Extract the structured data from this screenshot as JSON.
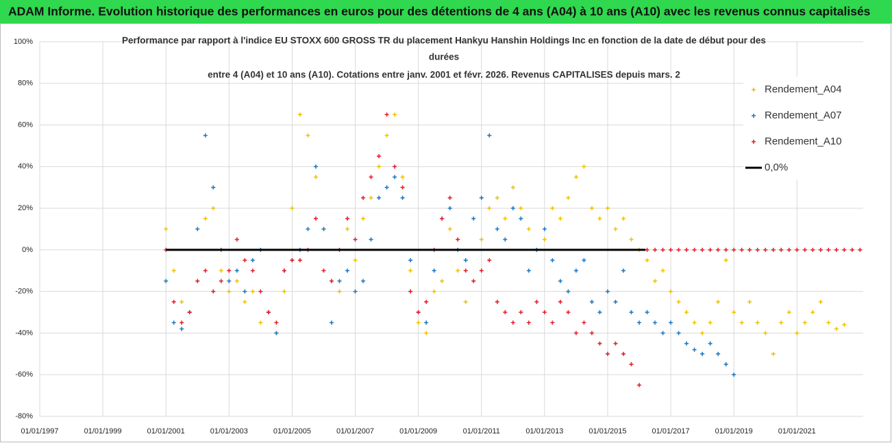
{
  "header": "ADAM Informe. Evolution historique des performances en euros pour des détentions de 4 ans (A04) à 10 ans (A10) avec les revenus connus capitalisés",
  "chart_data": {
    "type": "scatter",
    "title": [
      "Performance par rapport à l'indice EU STOXX 600 GROSS TR  du placement Hankyu Hanshin Holdings Inc en fonction de la date de début pour des",
      "durées",
      "entre 4 (A04) et 10 ans (A10).  Cotations entre janv. 2001 et févr. 2026. Revenus CAPITALISES depuis mars. 2"
    ],
    "xlim": [
      1997,
      2023.1
    ],
    "xticks": [
      {
        "value": 1997,
        "label": "01/01/1997"
      },
      {
        "value": 1999,
        "label": "01/01/1999"
      },
      {
        "value": 2001,
        "label": "01/01/2001"
      },
      {
        "value": 2003,
        "label": "01/01/2003"
      },
      {
        "value": 2005,
        "label": "01/01/2005"
      },
      {
        "value": 2007,
        "label": "01/01/2007"
      },
      {
        "value": 2009,
        "label": "01/01/2009"
      },
      {
        "value": 2011,
        "label": "01/01/2011"
      },
      {
        "value": 2013,
        "label": "01/01/2013"
      },
      {
        "value": 2015,
        "label": "01/01/2015"
      },
      {
        "value": 2017,
        "label": "01/01/2017"
      },
      {
        "value": 2019,
        "label": "01/01/2019"
      },
      {
        "value": 2021,
        "label": "01/01/2021"
      }
    ],
    "ylim": [
      -80,
      100
    ],
    "yticks": [
      {
        "value": -80,
        "label": "-80%"
      },
      {
        "value": -60,
        "label": "-60%"
      },
      {
        "value": -40,
        "label": "-40%"
      },
      {
        "value": -20,
        "label": "-20%"
      },
      {
        "value": 0,
        "label": "0%"
      },
      {
        "value": 20,
        "label": "20%"
      },
      {
        "value": 40,
        "label": "40%"
      },
      {
        "value": 60,
        "label": "60%"
      },
      {
        "value": 80,
        "label": "80%"
      },
      {
        "value": 100,
        "label": "100%"
      }
    ],
    "grid": true,
    "legend": "right",
    "series": [
      {
        "name": "Rendement_A04",
        "color": "#f2c200",
        "mode": "markers",
        "x": [
          2001,
          2001.25,
          2001.5,
          2001.75,
          2002,
          2002.25,
          2002.5,
          2002.75,
          2003,
          2003.25,
          2003.5,
          2003.75,
          2004,
          2004.25,
          2004.5,
          2004.75,
          2005,
          2005.25,
          2005.5,
          2005.75,
          2006,
          2006.25,
          2006.5,
          2006.75,
          2007,
          2007.25,
          2007.5,
          2007.75,
          2008,
          2008.25,
          2008.5,
          2008.75,
          2009,
          2009.25,
          2009.5,
          2009.75,
          2010,
          2010.25,
          2010.5,
          2010.75,
          2011,
          2011.25,
          2011.5,
          2011.75,
          2012,
          2012.25,
          2012.5,
          2012.75,
          2013,
          2013.25,
          2013.5,
          2013.75,
          2014,
          2014.25,
          2014.5,
          2014.75,
          2015,
          2015.25,
          2015.5,
          2015.75,
          2016,
          2016.25,
          2016.5,
          2016.75,
          2017,
          2017.25,
          2017.5,
          2017.75,
          2018,
          2018.25,
          2018.5,
          2018.75,
          2019,
          2019.25,
          2019.5,
          2019.75,
          2020,
          2020.25,
          2020.5,
          2020.75,
          2021,
          2021.25,
          2021.5,
          2021.75,
          2022,
          2022.25,
          2022.5
        ],
        "values": [
          10,
          -10,
          -25,
          -30,
          -15,
          15,
          20,
          -10,
          -20,
          -15,
          -25,
          -20,
          -35,
          -30,
          -40,
          -20,
          20,
          65,
          55,
          35,
          10,
          -15,
          -20,
          10,
          -5,
          15,
          25,
          40,
          55,
          65,
          35,
          -10,
          -35,
          -40,
          -20,
          -15,
          10,
          -10,
          -25,
          -15,
          5,
          20,
          25,
          15,
          30,
          20,
          10,
          0,
          5,
          20,
          15,
          25,
          35,
          40,
          20,
          15,
          20,
          10,
          15,
          5,
          0,
          -5,
          -15,
          -10,
          -20,
          -25,
          -30,
          -35,
          -40,
          -35,
          -25,
          -5,
          -30,
          -35,
          -25,
          -35,
          -40,
          -50,
          -35,
          -30,
          -40,
          -35,
          -30,
          -25,
          -35,
          -38,
          -36
        ]
      },
      {
        "name": "Rendement_A07",
        "color": "#1f7ac4",
        "mode": "markers",
        "x": [
          2001,
          2001.25,
          2001.5,
          2001.75,
          2002,
          2002.25,
          2002.5,
          2002.75,
          2003,
          2003.25,
          2003.5,
          2003.75,
          2004,
          2004.25,
          2004.5,
          2004.75,
          2005,
          2005.25,
          2005.5,
          2005.75,
          2006,
          2006.25,
          2006.5,
          2006.75,
          2007,
          2007.25,
          2007.5,
          2007.75,
          2008,
          2008.25,
          2008.5,
          2008.75,
          2009,
          2009.25,
          2009.5,
          2009.75,
          2010,
          2010.25,
          2010.5,
          2010.75,
          2011,
          2011.25,
          2011.5,
          2011.75,
          2012,
          2012.25,
          2012.5,
          2012.75,
          2013,
          2013.25,
          2013.5,
          2013.75,
          2014,
          2014.25,
          2014.5,
          2014.75,
          2015,
          2015.25,
          2015.5,
          2015.75,
          2016,
          2016.25,
          2016.5,
          2016.75,
          2017,
          2017.25,
          2017.5,
          2017.75,
          2018,
          2018.25,
          2018.5,
          2018.75,
          2019
        ],
        "values": [
          -15,
          -35,
          -38,
          -30,
          10,
          55,
          30,
          0,
          -15,
          -10,
          -20,
          -5,
          0,
          -30,
          -40,
          -10,
          -5,
          0,
          10,
          40,
          10,
          -35,
          -15,
          -10,
          -20,
          -15,
          5,
          25,
          30,
          35,
          25,
          -5,
          -30,
          -35,
          -10,
          15,
          20,
          0,
          -5,
          15,
          25,
          55,
          10,
          5,
          20,
          15,
          -10,
          0,
          10,
          -5,
          -15,
          -20,
          -10,
          -5,
          -25,
          -30,
          -20,
          -25,
          -10,
          -30,
          -35,
          -30,
          -35,
          -40,
          -35,
          -40,
          -45,
          -48,
          -50,
          -45,
          -50,
          -55,
          -60
        ]
      },
      {
        "name": "Rendement_A10",
        "color": "#e8202a",
        "mode": "markers",
        "x": [
          2001,
          2001.25,
          2001.5,
          2001.75,
          2002,
          2002.25,
          2002.5,
          2002.75,
          2003,
          2003.25,
          2003.5,
          2003.75,
          2004,
          2004.25,
          2004.5,
          2004.75,
          2005,
          2005.25,
          2005.5,
          2005.75,
          2006,
          2006.25,
          2006.5,
          2006.75,
          2007,
          2007.25,
          2007.5,
          2007.75,
          2008,
          2008.25,
          2008.5,
          2008.75,
          2009,
          2009.25,
          2009.5,
          2009.75,
          2010,
          2010.25,
          2010.5,
          2010.75,
          2011,
          2011.25,
          2011.5,
          2011.75,
          2012,
          2012.25,
          2012.5,
          2012.75,
          2013,
          2013.25,
          2013.5,
          2013.75,
          2014,
          2014.25,
          2014.5,
          2014.75,
          2015,
          2015.25,
          2015.5,
          2015.75,
          2016,
          2016.25,
          2016.5,
          2016.75,
          2017,
          2017.25,
          2017.5,
          2017.75,
          2018,
          2018.25,
          2018.5,
          2018.75,
          2019,
          2019.25,
          2019.5,
          2019.75,
          2020,
          2020.25,
          2020.5,
          2020.75,
          2021,
          2021.25,
          2021.5,
          2021.75,
          2022,
          2022.25,
          2022.5,
          2022.75,
          2023
        ],
        "values": [
          0,
          -25,
          -35,
          -30,
          -15,
          -10,
          -20,
          -15,
          -10,
          5,
          -5,
          -10,
          -20,
          -30,
          -35,
          -10,
          -5,
          -5,
          0,
          15,
          -10,
          -15,
          0,
          15,
          5,
          25,
          35,
          45,
          65,
          40,
          30,
          -20,
          -30,
          -25,
          0,
          15,
          25,
          5,
          -10,
          -15,
          -10,
          -5,
          -25,
          -30,
          -35,
          -30,
          -35,
          -25,
          -30,
          -35,
          -25,
          -30,
          -40,
          -35,
          -40,
          -45,
          -50,
          -45,
          -50,
          -55,
          -65,
          0,
          0,
          0,
          0,
          0,
          0,
          0,
          0,
          0,
          0,
          0,
          0,
          0,
          0,
          0,
          0,
          0,
          0,
          0,
          0,
          0,
          0,
          0,
          0,
          0,
          0,
          0,
          0
        ]
      },
      {
        "name": "0,0%",
        "color": "#000000",
        "mode": "line",
        "x": [
          2001,
          2016.2
        ],
        "values": [
          0,
          0
        ]
      }
    ]
  }
}
